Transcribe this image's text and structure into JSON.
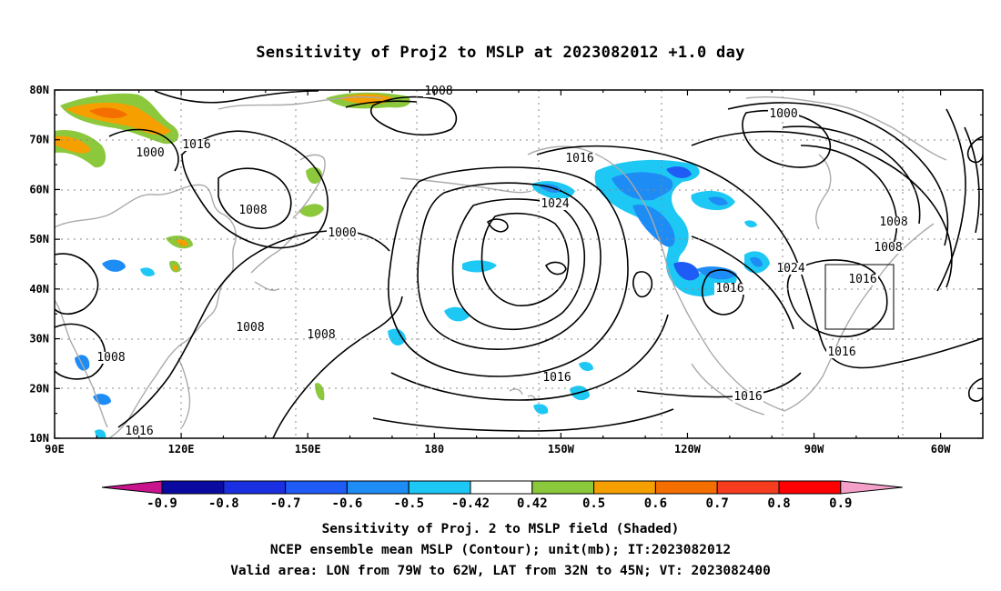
{
  "title": "Sensitivity of Proj2 to MSLP at 2023082012 +1.0 day",
  "captions": [
    "Sensitivity of Proj. 2 to MSLP field (Shaded)",
    "NCEP ensemble mean MSLP (Contour); unit(mb); IT:2023082012",
    "Valid area: LON from 79W to 62W, LAT from 32N to 45N; VT: 2023082400"
  ],
  "axes": {
    "lat_labels": [
      "80N",
      "70N",
      "60N",
      "50N",
      "40N",
      "30N",
      "20N",
      "10N"
    ],
    "lon_labels": [
      "90E",
      "120E",
      "150E",
      "180",
      "150W",
      "120W",
      "90W",
      "60W"
    ],
    "lat_range": [
      10,
      80
    ],
    "lon_range": [
      90,
      310
    ]
  },
  "colorbar": {
    "labels": [
      "-0.9",
      "-0.8",
      "-0.7",
      "-0.6",
      "-0.5",
      "-0.42",
      "0.42",
      "0.5",
      "0.6",
      "0.7",
      "0.8",
      "0.9"
    ],
    "colors": [
      "#0a0aa0",
      "#1a2fe0",
      "#1e5cf5",
      "#1e8cf5",
      "#1ec8f5",
      "#ffffff",
      "#8cc83c",
      "#f5a000",
      "#f56e00",
      "#f53c1e",
      "#ff0000"
    ],
    "min_color": "#c8148c",
    "max_color": "#f5a0c8"
  },
  "contour_labels": [
    {
      "text": "1008"
    },
    {
      "text": "1000"
    },
    {
      "text": "1016"
    },
    {
      "text": "1008"
    },
    {
      "text": "1000"
    },
    {
      "text": "1008"
    },
    {
      "text": "1016"
    },
    {
      "text": "1024"
    },
    {
      "text": "1000"
    },
    {
      "text": "1008"
    },
    {
      "text": "1024"
    },
    {
      "text": "1016"
    },
    {
      "text": "1016"
    },
    {
      "text": "1016"
    },
    {
      "text": "1008"
    },
    {
      "text": "1016"
    },
    {
      "text": "1008"
    },
    {
      "text": "1008"
    },
    {
      "text": "1016"
    },
    {
      "text": "1016"
    }
  ],
  "valid_area": {
    "lon": [
      -79,
      -62
    ],
    "lat": [
      32,
      45
    ]
  }
}
